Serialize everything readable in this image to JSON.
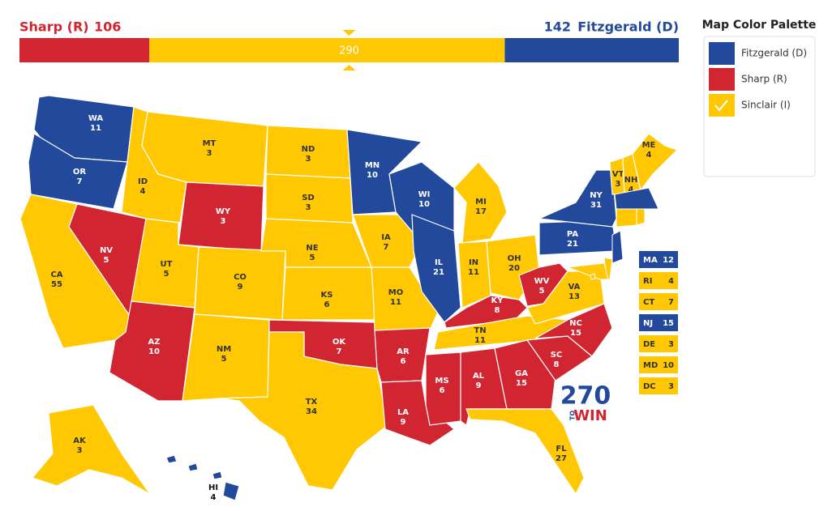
{
  "header": {
    "results": [
      {
        "candidate": "Sharp (R)",
        "votes": 106,
        "color": "#d22532"
      },
      {
        "candidate": "Sinclair (I)",
        "votes": 290,
        "color": "#ffc802"
      },
      {
        "candidate": "Fitzgerald (D)",
        "votes": 142,
        "color": "#22499c"
      }
    ]
  },
  "palette": {
    "title": "Map Color Palette",
    "items": [
      {
        "name": "Fitzgerald (D)",
        "color": "#22499c",
        "text_color": "#fff"
      },
      {
        "name": "Sharp (R)",
        "color": "#d22532",
        "text_color": "#fff"
      },
      {
        "name": "Sinclair (I)",
        "color": "#ffc802",
        "text_color": "#333"
      }
    ]
  },
  "states": [
    {
      "abbr": "WA",
      "votes": 11,
      "winner": "Fitzgerald (D)"
    },
    {
      "abbr": "OR",
      "votes": 7,
      "winner": "Fitzgerald (D)"
    },
    {
      "abbr": "CA",
      "votes": 55,
      "winner": "Sinclair (I)"
    },
    {
      "abbr": "NV",
      "votes": 5,
      "winner": "Sharp (R)"
    },
    {
      "abbr": "ID",
      "votes": 4,
      "winner": "Sinclair (I)"
    },
    {
      "abbr": "MT",
      "votes": 3,
      "winner": "Sinclair (I)"
    },
    {
      "abbr": "WY",
      "votes": 3,
      "winner": "Sharp (R)"
    },
    {
      "abbr": "UT",
      "votes": 5,
      "winner": "Sinclair (I)"
    },
    {
      "abbr": "AZ",
      "votes": 10,
      "winner": "Sharp (R)"
    },
    {
      "abbr": "CO",
      "votes": 9,
      "winner": "Sinclair (I)"
    },
    {
      "abbr": "NM",
      "votes": 5,
      "winner": "Sinclair (I)"
    },
    {
      "abbr": "ND",
      "votes": 3,
      "winner": "Sinclair (I)"
    },
    {
      "abbr": "SD",
      "votes": 3,
      "winner": "Sinclair (I)"
    },
    {
      "abbr": "NE",
      "votes": 5,
      "winner": "Sinclair (I)"
    },
    {
      "abbr": "KS",
      "votes": 6,
      "winner": "Sinclair (I)"
    },
    {
      "abbr": "OK",
      "votes": 7,
      "winner": "Sharp (R)"
    },
    {
      "abbr": "TX",
      "votes": 34,
      "winner": "Sinclair (I)"
    },
    {
      "abbr": "MN",
      "votes": 10,
      "winner": "Fitzgerald (D)"
    },
    {
      "abbr": "IA",
      "votes": 7,
      "winner": "Sinclair (I)"
    },
    {
      "abbr": "MO",
      "votes": 11,
      "winner": "Sinclair (I)"
    },
    {
      "abbr": "AR",
      "votes": 6,
      "winner": "Sharp (R)"
    },
    {
      "abbr": "LA",
      "votes": 9,
      "winner": "Sharp (R)"
    },
    {
      "abbr": "WI",
      "votes": 10,
      "winner": "Fitzgerald (D)"
    },
    {
      "abbr": "IL",
      "votes": 21,
      "winner": "Fitzgerald (D)"
    },
    {
      "abbr": "MS",
      "votes": 6,
      "winner": "Sharp (R)"
    },
    {
      "abbr": "MI",
      "votes": 17,
      "winner": "Sinclair (I)"
    },
    {
      "abbr": "IN",
      "votes": 11,
      "winner": "Sinclair (I)"
    },
    {
      "abbr": "KY",
      "votes": 8,
      "winner": "Sharp (R)"
    },
    {
      "abbr": "TN",
      "votes": 11,
      "winner": "Sinclair (I)"
    },
    {
      "abbr": "AL",
      "votes": 9,
      "winner": "Sharp (R)"
    },
    {
      "abbr": "OH",
      "votes": 20,
      "winner": "Sinclair (I)"
    },
    {
      "abbr": "GA",
      "votes": 15,
      "winner": "Sharp (R)"
    },
    {
      "abbr": "FL",
      "votes": 27,
      "winner": "Sinclair (I)"
    },
    {
      "abbr": "SC",
      "votes": 8,
      "winner": "Sharp (R)"
    },
    {
      "abbr": "NC",
      "votes": 15,
      "winner": "Sharp (R)"
    },
    {
      "abbr": "WV",
      "votes": 5,
      "winner": "Sharp (R)"
    },
    {
      "abbr": "VA",
      "votes": 13,
      "winner": "Sinclair (I)"
    },
    {
      "abbr": "PA",
      "votes": 21,
      "winner": "Fitzgerald (D)"
    },
    {
      "abbr": "NY",
      "votes": 31,
      "winner": "Fitzgerald (D)"
    },
    {
      "abbr": "VT",
      "votes": 3,
      "winner": "Sinclair (I)"
    },
    {
      "abbr": "NH",
      "votes": 4,
      "winner": "Sinclair (I)"
    },
    {
      "abbr": "ME",
      "votes": 4,
      "winner": "Sinclair (I)"
    },
    {
      "abbr": "AK",
      "votes": 3,
      "winner": "Sinclair (I)"
    },
    {
      "abbr": "HI",
      "votes": 4,
      "winner": "Fitzgerald (D)"
    }
  ],
  "small_states": [
    {
      "abbr": "MA",
      "votes": 12,
      "winner": "Fitzgerald (D)"
    },
    {
      "abbr": "RI",
      "votes": 4,
      "winner": "Sinclair (I)"
    },
    {
      "abbr": "CT",
      "votes": 7,
      "winner": "Sinclair (I)"
    },
    {
      "abbr": "NJ",
      "votes": 15,
      "winner": "Fitzgerald (D)"
    },
    {
      "abbr": "DE",
      "votes": 3,
      "winner": "Sinclair (I)"
    },
    {
      "abbr": "MD",
      "votes": 10,
      "winner": "Sinclair (I)"
    },
    {
      "abbr": "DC",
      "votes": 3,
      "winner": "Sinclair (I)"
    }
  ],
  "logo": {
    "number": "270",
    "to": "TO",
    "win": "WIN"
  }
}
